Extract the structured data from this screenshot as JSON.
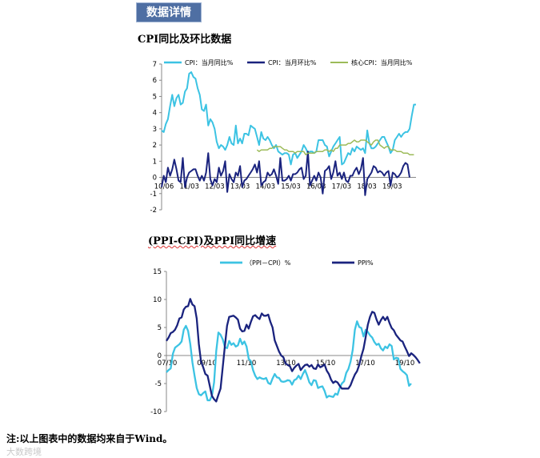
{
  "section_badge": "数据详情",
  "footnote": "注:以上图表中的数据均来自于Wind。",
  "watermark": "大数跨境",
  "chart_data": [
    {
      "type": "line",
      "title": "CPI同比及环比数据",
      "ylim": [
        -2,
        7
      ],
      "yticks": [
        "7",
        "6",
        "5",
        "4",
        "3",
        "2",
        "1",
        "0",
        "-1",
        "-2"
      ],
      "xticks": [
        "10/06",
        "11/03",
        "12/03",
        "13/03",
        "14/03",
        "15/03",
        "16/03",
        "17/03",
        "18/03",
        "19/03"
      ],
      "series": [
        {
          "name": "CPI：当月同比%",
          "color": "#3cc3e3",
          "values": [
            2.9,
            2.8,
            3.3,
            3.6,
            4.4,
            5.1,
            4.4,
            4.9,
            5.1,
            4.5,
            4.6,
            5.3,
            5.5,
            6.4,
            6.5,
            6.2,
            6.1,
            5.5,
            5.1,
            4.2,
            4.1,
            4.5,
            3.2,
            3.6,
            3.4,
            3.0,
            2.2,
            1.8,
            2.0,
            1.9,
            1.7,
            2.0,
            2.5,
            2.1,
            2.0,
            3.2,
            2.1,
            2.4,
            2.1,
            2.7,
            2.7,
            2.6,
            3.2,
            3.1,
            3.0,
            2.5,
            2.0,
            2.8,
            2.4,
            2.3,
            2.5,
            2.3,
            2.0,
            1.8,
            2.0,
            1.6,
            1.5,
            1.4,
            1.5,
            1.5,
            1.4,
            0.8,
            1.4,
            1.5,
            1.2,
            1.4,
            1.6,
            2.0,
            1.8,
            1.5,
            1.6,
            1.6,
            1.5,
            1.6,
            2.3,
            2.3,
            2.3,
            2.0,
            1.9,
            1.3,
            1.6,
            1.9,
            2.1,
            2.3,
            2.5,
            0.8,
            0.9,
            1.2,
            1.5,
            1.4,
            1.8,
            1.6,
            1.9,
            1.8,
            1.7,
            1.8,
            1.5,
            2.9,
            2.1,
            1.8,
            1.8,
            1.9,
            2.1,
            2.3,
            2.5,
            2.5,
            2.2,
            1.9,
            1.5,
            1.7,
            2.3,
            2.5,
            2.7,
            2.5,
            2.7,
            2.8,
            2.8,
            3.0,
            3.8,
            4.5,
            4.5
          ]
        },
        {
          "name": "CPI：当月环比%",
          "color": "#1a237e",
          "values": [
            -0.6,
            0.1,
            -0.3,
            0.6,
            0.1,
            0.5,
            1.1,
            0.5,
            -0.2,
            -0.3,
            1.2,
            -0.6,
            0.0,
            0.3,
            0.4,
            0.5,
            0.5,
            0.1,
            -0.2,
            0.1,
            -0.2,
            0.3,
            1.5,
            -0.1,
            -0.5,
            -0.1,
            -0.3,
            0.6,
            0.1,
            0.4,
            1.0,
            -0.9,
            0.2,
            -0.1,
            -0.3,
            0.3,
            0.1,
            0.7,
            -0.6,
            -0.2,
            -0.1,
            0.1,
            0.3,
            0.5,
            0.8,
            0.3,
            1.0,
            -0.5,
            -0.3,
            -0.2,
            0.3,
            0.1,
            0.2,
            0.5,
            0.1,
            -0.4,
            1.2,
            -0.2,
            -0.2,
            -0.1,
            0.1,
            -0.2,
            0.2,
            0.2,
            0.3,
            0.5,
            0.6,
            -0.1,
            0.1,
            1.6,
            -0.5,
            -0.2,
            0.1,
            -0.2,
            0.3,
            0.0,
            -1.0,
            0.4,
            0.5,
            0.7,
            -0.1,
            0.3,
            1.0,
            0.1,
            0.3,
            -0.1,
            0.3,
            -0.2,
            -0.3,
            0.1,
            0.1,
            0.4,
            0.6,
            0.2,
            0.5,
            1.2,
            -1.1,
            -0.1,
            0.1,
            0.3,
            0.7,
            0.6,
            0.3,
            0.4,
            0.3,
            0.1,
            0.3,
            0.4,
            -0.5,
            0.3,
            0.2,
            0.0,
            0.1,
            0.3,
            0.7,
            0.9,
            0.8,
            0.0
          ]
        },
        {
          "name": "核心CPI：当月同比%",
          "color": "#9cbb59",
          "values": [
            null,
            null,
            null,
            null,
            null,
            null,
            null,
            null,
            null,
            null,
            null,
            null,
            null,
            null,
            null,
            null,
            null,
            null,
            null,
            null,
            null,
            null,
            null,
            null,
            null,
            null,
            null,
            null,
            null,
            null,
            null,
            null,
            null,
            null,
            null,
            null,
            null,
            null,
            null,
            null,
            null,
            null,
            null,
            null,
            null,
            1.7,
            1.6,
            1.7,
            1.7,
            1.7,
            1.7,
            1.8,
            1.8,
            1.9,
            1.9,
            1.9,
            1.9,
            1.8,
            1.7,
            1.7,
            1.6,
            1.6,
            1.6,
            1.5,
            1.6,
            1.6,
            1.6,
            1.6,
            1.4,
            1.5,
            1.5,
            1.5,
            1.5,
            1.6,
            1.6,
            1.6,
            1.6,
            1.7,
            1.7,
            1.6,
            1.7,
            1.6,
            1.8,
            1.8,
            2.0,
            2.0,
            2.0,
            2.0,
            2.1,
            2.1,
            2.2,
            2.3,
            2.2,
            2.2,
            2.3,
            2.3,
            2.3,
            2.2,
            2.1,
            2.0,
            2.2,
            2.3,
            2.3,
            2.0,
            1.9,
            1.8,
            1.9,
            1.9,
            1.7,
            1.7,
            1.7,
            1.6,
            1.6,
            1.6,
            1.5,
            1.5,
            1.5,
            1.4,
            1.4,
            1.4
          ]
        }
      ]
    },
    {
      "type": "line",
      "title": "(PPI-CPI)及PPI同比增速",
      "ylim": [
        -10,
        15
      ],
      "yticks": [
        "15",
        "10",
        "5",
        "0",
        "-5",
        "-10"
      ],
      "xticks": [
        "07/10",
        "09/10",
        "11/10",
        "13/10",
        "15/10",
        "17/10",
        "19/10"
      ],
      "series": [
        {
          "name": "（PPI－CPI）%",
          "color": "#3cc3e3",
          "values": [
            -3.0,
            -2.6,
            -2.3,
            0.3,
            1.4,
            1.7,
            2.0,
            2.5,
            4.6,
            5.3,
            4.4,
            2.1,
            -1.2,
            -3.6,
            -5.8,
            -6.9,
            -7.1,
            -6.7,
            -6.4,
            -8.0,
            -8.0,
            -7.2,
            -4.8,
            0.8,
            4.1,
            3.7,
            2.9,
            1.5,
            1.3,
            2.6,
            1.9,
            2.2,
            1.6,
            1.8,
            3.0,
            2.0,
            2.5,
            1.6,
            -0.6,
            -1.0,
            -2.6,
            -3.6,
            -4.2,
            -3.9,
            -4.1,
            -4.2,
            -4.0,
            -4.9,
            -5.1,
            -4.1,
            -3.3,
            -3.9,
            -4.0,
            -4.6,
            -4.7,
            -4.6,
            -4.4,
            -4.5,
            -5.2,
            -4.4,
            -4.2,
            -3.6,
            -4.2,
            -3.3,
            -2.6,
            -3.6,
            -4.8,
            -5.3,
            -4.4,
            -4.5,
            -5.8,
            -5.6,
            -5.5,
            -6.3,
            -7.5,
            -7.2,
            -7.3,
            -7.4,
            -6.8,
            -7.0,
            -5.8,
            -5.0,
            -4.6,
            -3.1,
            -2.4,
            -1.1,
            1.0,
            4.6,
            6.1,
            5.1,
            4.9,
            3.4,
            4.6,
            4.2,
            3.6,
            3.2,
            2.4,
            1.9,
            2.1,
            1.3,
            0.9,
            1.6,
            1.3,
            2.0,
            1.7,
            -0.7,
            -0.4,
            -0.5,
            -2.4,
            -2.8,
            -3.1,
            -3.5,
            -5.4,
            -5.0
          ]
        },
        {
          "name": "PPI%",
          "color": "#1a237e",
          "values": [
            2.6,
            3.2,
            4.0,
            4.2,
            4.6,
            5.4,
            6.6,
            6.8,
            8.2,
            8.7,
            8.8,
            10.1,
            9.1,
            8.8,
            6.6,
            2.0,
            -1.1,
            -2.1,
            -3.3,
            -3.6,
            -5.4,
            -7.2,
            -7.8,
            -8.2,
            -7.0,
            -5.9,
            -2.1,
            1.7,
            5.3,
            6.9,
            7.0,
            7.1,
            6.8,
            6.4,
            4.8,
            4.3,
            4.4,
            5.5,
            4.8,
            6.0,
            7.0,
            7.2,
            6.8,
            6.5,
            7.5,
            7.1,
            7.1,
            7.3,
            6.0,
            5.0,
            2.7,
            1.7,
            0.7,
            0.0,
            -0.3,
            -1.4,
            -1.7,
            -1.9,
            -2.8,
            -2.2,
            -1.8,
            -1.5,
            -2.6,
            -2.1,
            -1.7,
            -1.6,
            -2.0,
            -1.7,
            -2.3,
            -2.4,
            -1.6,
            -2.1,
            -1.9,
            -1.6,
            -2.7,
            -3.3,
            -4.3,
            -4.9,
            -4.6,
            -4.8,
            -5.4,
            -5.9,
            -5.9,
            -5.9,
            -5.9,
            -5.3,
            -4.3,
            -3.4,
            -2.8,
            -1.7,
            -0.1,
            1.2,
            3.3,
            5.5,
            6.9,
            7.8,
            7.6,
            6.4,
            5.5,
            6.3,
            6.9,
            6.3,
            6.9,
            5.8,
            4.9,
            4.5,
            3.7,
            3.2,
            2.7,
            2.5,
            1.6,
            0.8,
            -0.1,
            0.4,
            0.1,
            -0.3,
            -0.8,
            -1.4
          ]
        }
      ]
    }
  ]
}
